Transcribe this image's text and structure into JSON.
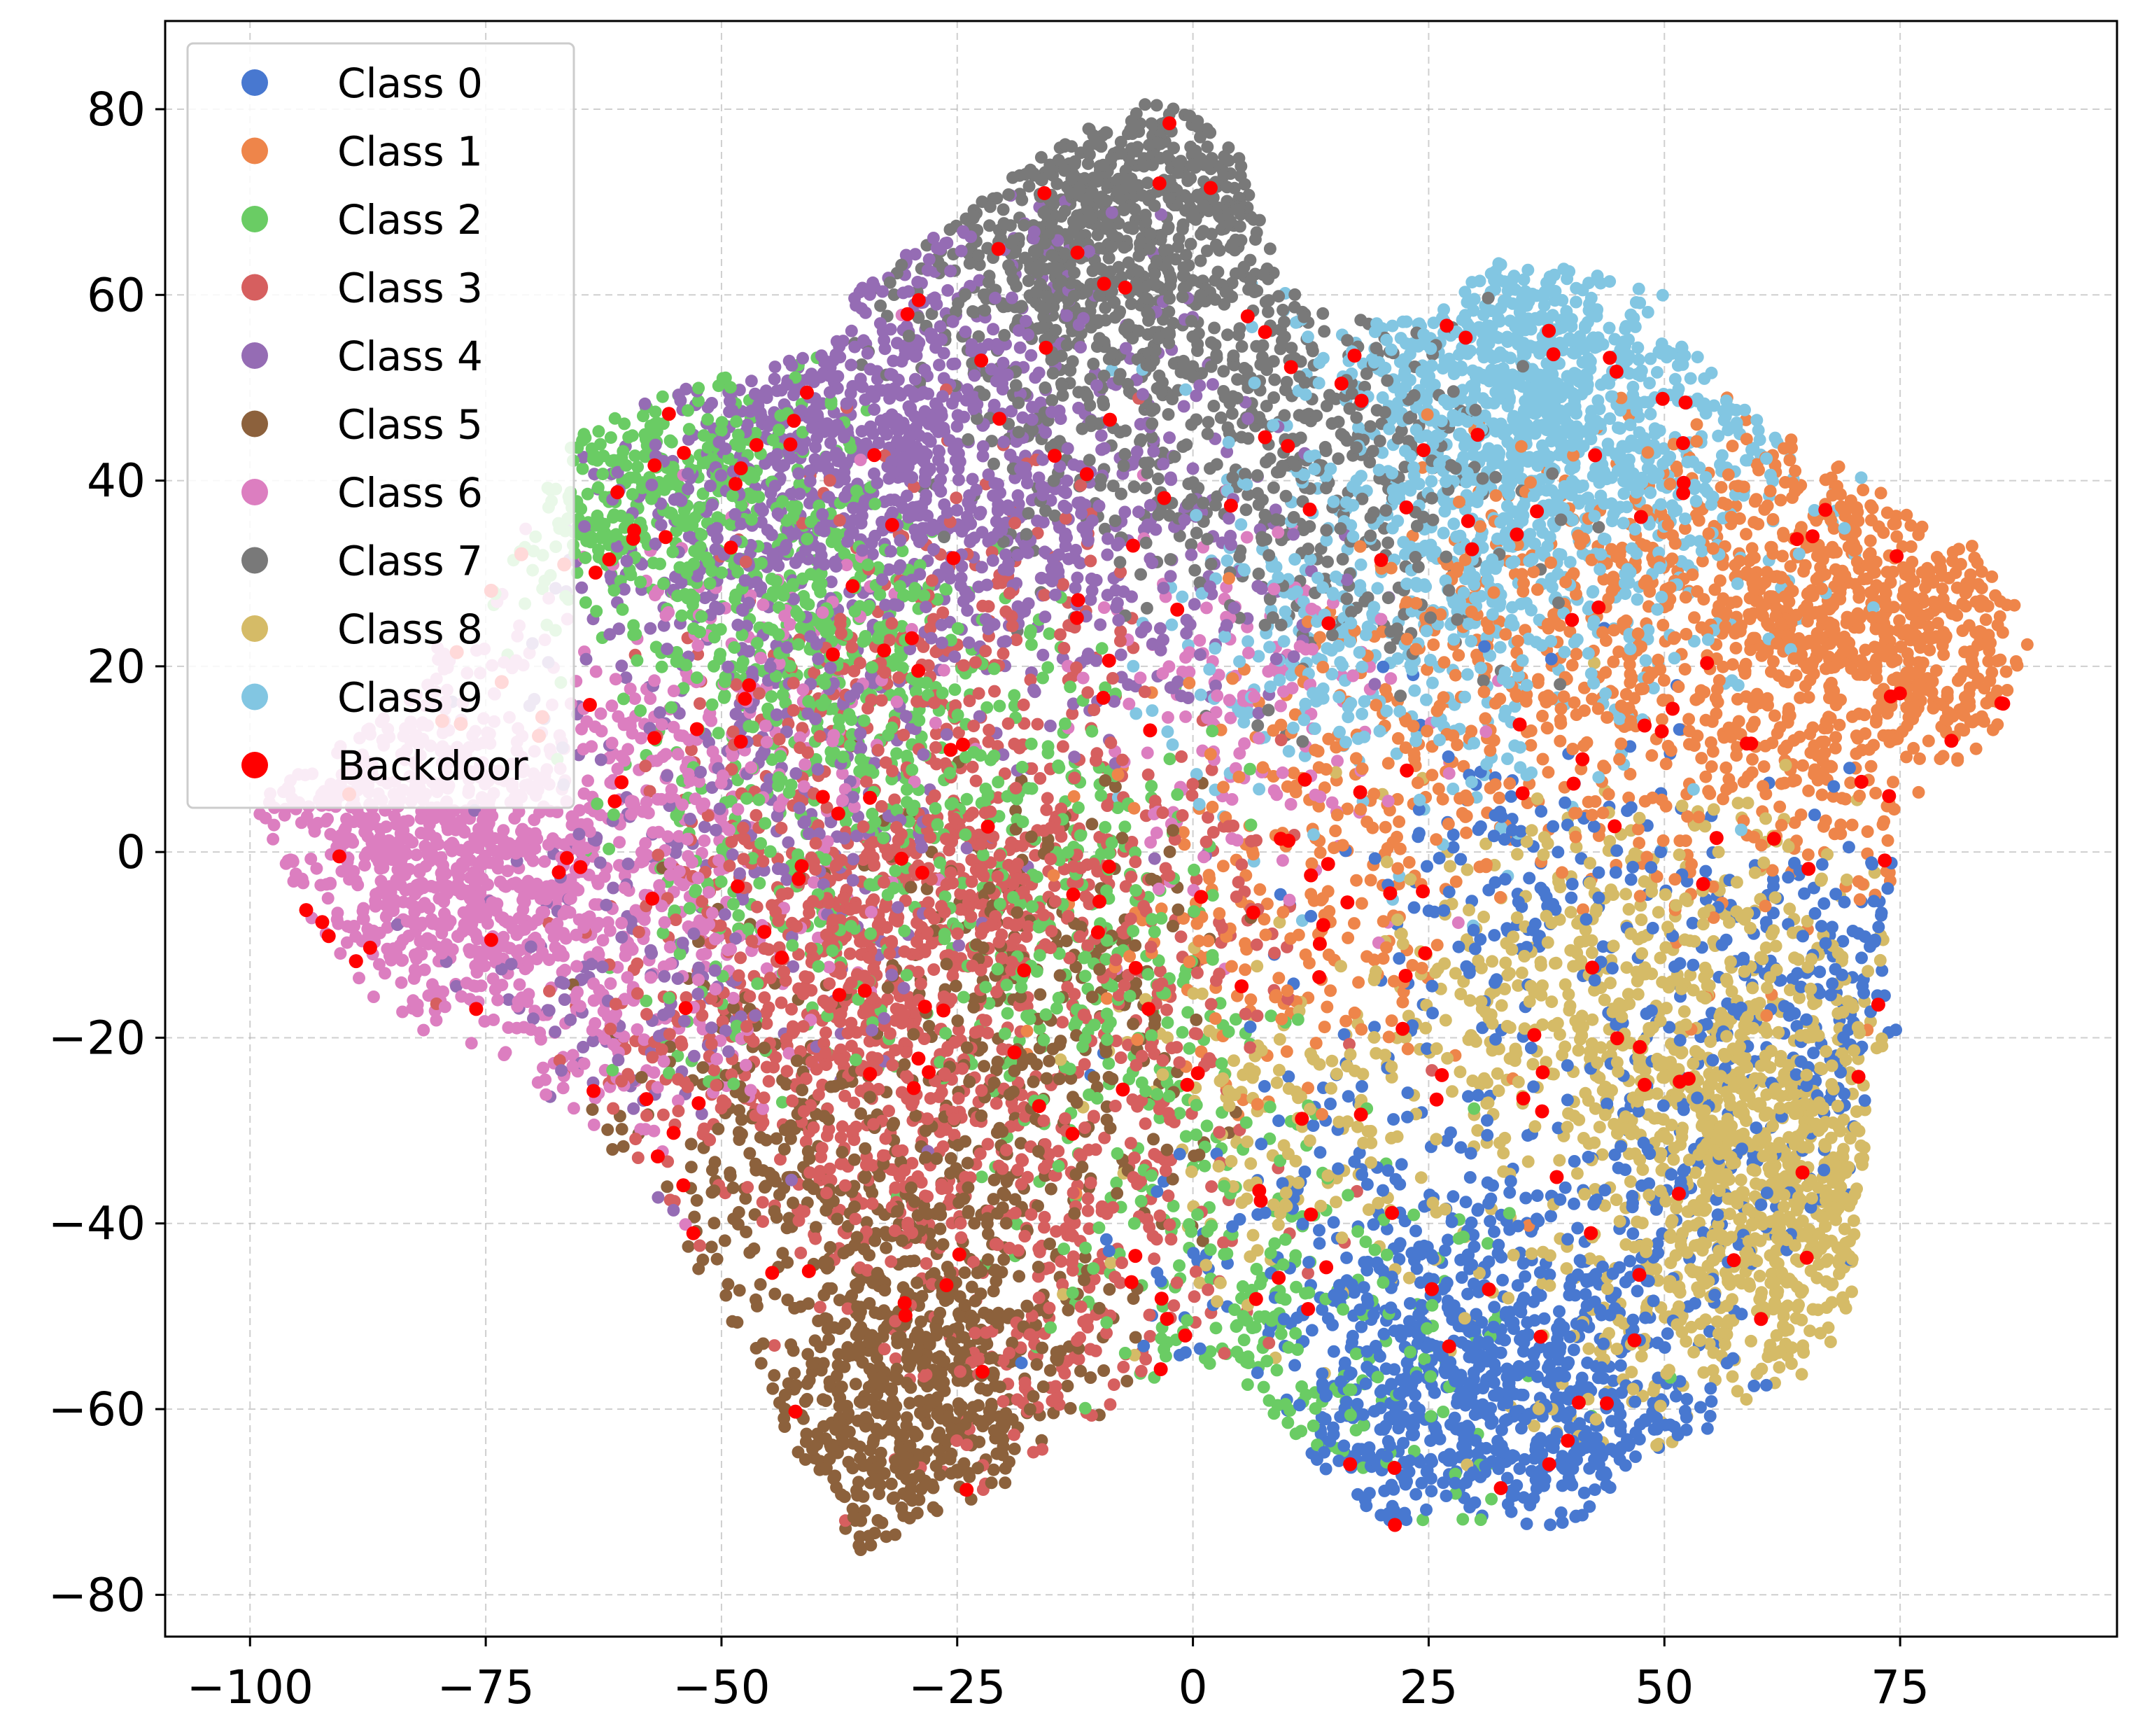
{
  "chart_data": {
    "type": "scatter",
    "title": "",
    "xlabel": "",
    "ylabel": "",
    "xlim": [
      -109,
      98
    ],
    "ylim": [
      -84.5,
      89.5
    ],
    "x_ticks": [
      -100,
      -75,
      -50,
      -25,
      0,
      25,
      50,
      75
    ],
    "y_ticks": [
      -80,
      -60,
      -40,
      -20,
      0,
      20,
      40,
      60,
      80
    ],
    "x_tick_labels": [
      "−100",
      "−75",
      "−50",
      "−25",
      "0",
      "25",
      "50",
      "75"
    ],
    "y_tick_labels": [
      "−80",
      "−60",
      "−40",
      "−20",
      "0",
      "20",
      "40",
      "60",
      "80"
    ],
    "grid": true,
    "legend_position": "top-left",
    "series": [
      {
        "name": "Class 0",
        "color": "#4878d0",
        "cluster_centers": [
          [
            30,
            -58
          ],
          [
            22,
            -62
          ],
          [
            42,
            -66
          ],
          [
            38,
            -48
          ],
          [
            62,
            -18
          ],
          [
            72,
            -15
          ],
          [
            35,
            -5
          ],
          [
            48,
            -38
          ],
          [
            15,
            -40
          ]
        ]
      },
      {
        "name": "Class 1",
        "color": "#ee854a",
        "cluster_centers": [
          [
            72,
            25
          ],
          [
            82,
            22
          ],
          [
            62,
            32
          ],
          [
            55,
            15
          ],
          [
            45,
            25
          ],
          [
            68,
            8
          ],
          [
            35,
            20
          ],
          [
            20,
            10
          ],
          [
            10,
            -10
          ]
        ]
      },
      {
        "name": "Class 2",
        "color": "#6acc64",
        "cluster_centers": [
          [
            -52,
            38
          ],
          [
            -62,
            40
          ],
          [
            -40,
            22
          ],
          [
            -30,
            10
          ],
          [
            -15,
            0
          ],
          [
            5,
            -45
          ],
          [
            15,
            -60
          ],
          [
            -10,
            -20
          ],
          [
            -45,
            -5
          ]
        ]
      },
      {
        "name": "Class 3",
        "color": "#d65f5f",
        "cluster_centers": [
          [
            -30,
            -30
          ],
          [
            -40,
            -10
          ],
          [
            -20,
            -5
          ],
          [
            -50,
            -20
          ],
          [
            -10,
            -40
          ],
          [
            -35,
            10
          ],
          [
            -25,
            25
          ],
          [
            -15,
            -55
          ],
          [
            -5,
            -10
          ]
        ]
      },
      {
        "name": "Class 4",
        "color": "#956cb4",
        "cluster_centers": [
          [
            -35,
            50
          ],
          [
            -25,
            35
          ],
          [
            -45,
            40
          ],
          [
            -15,
            45
          ],
          [
            -5,
            30
          ],
          [
            -28,
            60
          ],
          [
            -50,
            25
          ],
          [
            -40,
            5
          ],
          [
            -60,
            -15
          ]
        ]
      },
      {
        "name": "Class 5",
        "color": "#8c613c",
        "cluster_centers": [
          [
            -30,
            -60
          ],
          [
            -35,
            -70
          ],
          [
            -25,
            -50
          ],
          [
            -40,
            -40
          ],
          [
            -20,
            -30
          ],
          [
            -15,
            -10
          ],
          [
            -45,
            -30
          ]
        ]
      },
      {
        "name": "Class 6",
        "color": "#dc7ec0",
        "cluster_centers": [
          [
            -90,
            5
          ],
          [
            -80,
            -5
          ],
          [
            -75,
            0
          ],
          [
            -70,
            -10
          ],
          [
            -60,
            -15
          ],
          [
            -55,
            5
          ],
          [
            -50,
            15
          ],
          [
            5,
            15
          ],
          [
            -85,
            10
          ]
        ]
      },
      {
        "name": "Class 7",
        "color": "#797979",
        "cluster_centers": [
          [
            -5,
            70
          ],
          [
            -15,
            65
          ],
          [
            0,
            75
          ],
          [
            -10,
            55
          ],
          [
            5,
            60
          ],
          [
            10,
            45
          ],
          [
            15,
            35
          ],
          [
            -20,
            72
          ],
          [
            -5,
            45
          ]
        ]
      },
      {
        "name": "Class 8",
        "color": "#d5bb67",
        "cluster_centers": [
          [
            60,
            -45
          ],
          [
            65,
            -35
          ],
          [
            55,
            -25
          ],
          [
            50,
            -55
          ],
          [
            45,
            -15
          ],
          [
            68,
            -30
          ],
          [
            55,
            -10
          ],
          [
            30,
            -20
          ],
          [
            10,
            -30
          ]
        ]
      },
      {
        "name": "Class 9",
        "color": "#82c6e2",
        "cluster_centers": [
          [
            35,
            50
          ],
          [
            30,
            55
          ],
          [
            42,
            48
          ],
          [
            25,
            40
          ],
          [
            45,
            38
          ],
          [
            20,
            30
          ],
          [
            15,
            20
          ],
          [
            55,
            45
          ],
          [
            35,
            25
          ]
        ]
      },
      {
        "name": "Backdoor",
        "color": "#ff0000",
        "count": 260
      }
    ]
  }
}
